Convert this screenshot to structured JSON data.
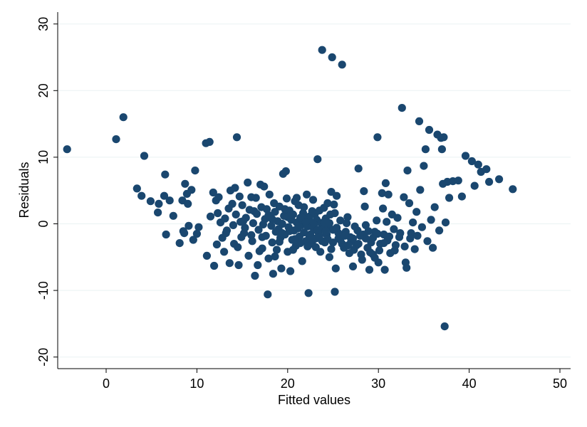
{
  "chart_data": {
    "type": "scatter",
    "title": "",
    "xlabel": "Fitted values",
    "ylabel": "Residuals",
    "xlim": [
      -5,
      50
    ],
    "ylim": [
      -20,
      30
    ],
    "xticks": [
      0,
      10,
      20,
      30,
      40,
      50
    ],
    "yticks": [
      -20,
      -10,
      0,
      10,
      20,
      30
    ],
    "xtick_labels": [
      "0",
      "10",
      "20",
      "30",
      "40",
      "50"
    ],
    "ytick_labels": [
      "-20",
      "-10",
      "0",
      "10",
      "20",
      "30"
    ],
    "grid": "horizontal",
    "legend": "none",
    "colors": {
      "marker": "#1a476f",
      "grid": "#eaf2f3",
      "axis": "#000000",
      "background": "#ffffff"
    },
    "series": [
      {
        "points": [
          [
            -4.3,
            11.2
          ],
          [
            1.1,
            12.7
          ],
          [
            1.9,
            16.0
          ],
          [
            4.2,
            10.2
          ],
          [
            3.4,
            5.3
          ],
          [
            3.9,
            4.2
          ],
          [
            4.9,
            3.4
          ],
          [
            5.7,
            1.7
          ],
          [
            5.8,
            3.0
          ],
          [
            6.4,
            4.2
          ],
          [
            6.5,
            7.4
          ],
          [
            6.6,
            -1.6
          ],
          [
            7.0,
            3.5
          ],
          [
            7.4,
            1.2
          ],
          [
            8.1,
            -2.9
          ],
          [
            8.4,
            3.5
          ],
          [
            8.5,
            -1.1
          ],
          [
            8.6,
            -1.4
          ],
          [
            8.7,
            6.0
          ],
          [
            8.9,
            4.5
          ],
          [
            9.0,
            3.0
          ],
          [
            9.1,
            -0.3
          ],
          [
            9.4,
            5.1
          ],
          [
            9.6,
            -2.4
          ],
          [
            9.8,
            8.0
          ],
          [
            10.0,
            -1.5
          ],
          [
            10.2,
            -0.5
          ],
          [
            11.0,
            12.1
          ],
          [
            11.4,
            12.3
          ],
          [
            11.1,
            -4.8
          ],
          [
            11.5,
            1.1
          ],
          [
            11.8,
            4.7
          ],
          [
            11.9,
            -6.3
          ],
          [
            12.1,
            3.5
          ],
          [
            12.3,
            1.6
          ],
          [
            12.4,
            4.0
          ],
          [
            12.6,
            0.2
          ],
          [
            12.8,
            -2.1
          ],
          [
            13.0,
            -4.2
          ],
          [
            13.1,
            0.8
          ],
          [
            13.3,
            -1.0
          ],
          [
            13.5,
            2.3
          ],
          [
            13.6,
            -5.9
          ],
          [
            13.7,
            5.0
          ],
          [
            13.9,
            3.0
          ],
          [
            14.0,
            -0.2
          ],
          [
            14.2,
            5.4
          ],
          [
            14.3,
            1.4
          ],
          [
            14.4,
            13.0
          ],
          [
            14.5,
            -3.5
          ],
          [
            14.6,
            -6.2
          ],
          [
            14.7,
            4.1
          ],
          [
            14.8,
            0.3
          ],
          [
            15.0,
            2.8
          ],
          [
            15.2,
            -1.4
          ],
          [
            15.4,
            0.9
          ],
          [
            15.6,
            6.2
          ],
          [
            15.7,
            -4.8
          ],
          [
            15.8,
            2.1
          ],
          [
            16.0,
            4.0
          ],
          [
            16.1,
            -2.6
          ],
          [
            16.2,
            0.1
          ],
          [
            16.4,
            -7.8
          ],
          [
            16.5,
            3.9
          ],
          [
            16.6,
            1.5
          ],
          [
            16.7,
            -6.2
          ],
          [
            16.8,
            -0.9
          ],
          [
            17.0,
            5.9
          ],
          [
            17.1,
            2.5
          ],
          [
            17.2,
            -3.7
          ],
          [
            17.4,
            5.6
          ],
          [
            17.5,
            0.7
          ],
          [
            17.6,
            -1.8
          ],
          [
            17.7,
            2.2
          ],
          [
            17.8,
            -10.6
          ],
          [
            17.9,
            -5.2
          ],
          [
            18.0,
            4.4
          ],
          [
            18.1,
            1.0
          ],
          [
            18.2,
            -0.3
          ],
          [
            18.3,
            -2.8
          ],
          [
            18.4,
            -7.5
          ],
          [
            18.5,
            3.1
          ],
          [
            18.6,
            1.8
          ],
          [
            18.7,
            -1.2
          ],
          [
            18.8,
            -3.9
          ],
          [
            18.9,
            0.4
          ],
          [
            19.0,
            -0.8
          ],
          [
            19.1,
            2.6
          ],
          [
            19.2,
            -2.1
          ],
          [
            19.3,
            -6.7
          ],
          [
            19.4,
            0.0
          ],
          [
            19.5,
            7.5
          ],
          [
            19.6,
            1.2
          ],
          [
            19.7,
            -1.6
          ],
          [
            19.8,
            7.9
          ],
          [
            19.9,
            3.8
          ],
          [
            20.0,
            -4.2
          ],
          [
            20.1,
            -0.5
          ],
          [
            20.2,
            2.0
          ],
          [
            20.3,
            -7.1
          ],
          [
            20.4,
            0.6
          ],
          [
            20.5,
            -2.4
          ],
          [
            20.6,
            1.4
          ],
          [
            20.7,
            -1.0
          ],
          [
            20.8,
            3.4
          ],
          [
            20.9,
            -3.3
          ],
          [
            21.0,
            0.2
          ],
          [
            21.1,
            -0.7
          ],
          [
            21.2,
            2.8
          ],
          [
            21.3,
            -1.9
          ],
          [
            21.4,
            0.9
          ],
          [
            21.5,
            -0.2
          ],
          [
            21.6,
            -5.6
          ],
          [
            21.7,
            1.6
          ],
          [
            21.8,
            -1.3
          ],
          [
            21.9,
            0.4
          ],
          [
            22.0,
            -2.6
          ],
          [
            22.1,
            4.4
          ],
          [
            22.2,
            -0.4
          ],
          [
            22.3,
            -10.4
          ],
          [
            22.4,
            1.1
          ],
          [
            22.5,
            -1.6
          ],
          [
            22.6,
            0.2
          ],
          [
            22.7,
            -3.0
          ],
          [
            22.8,
            3.6
          ],
          [
            22.9,
            -0.9
          ],
          [
            23.0,
            1.5
          ],
          [
            23.1,
            -2.2
          ],
          [
            23.2,
            0.6
          ],
          [
            23.3,
            9.7
          ],
          [
            23.4,
            -1.3
          ],
          [
            23.5,
            2.0
          ],
          [
            23.6,
            -4.2
          ],
          [
            23.7,
            0.1
          ],
          [
            23.8,
            26.1
          ],
          [
            23.9,
            -0.6
          ],
          [
            24.0,
            2.4
          ],
          [
            24.1,
            -2.8
          ],
          [
            24.2,
            0.8
          ],
          [
            24.3,
            -1.6
          ],
          [
            24.4,
            3.1
          ],
          [
            24.5,
            -0.3
          ],
          [
            24.6,
            -5.0
          ],
          [
            24.7,
            1.4
          ],
          [
            24.8,
            4.8
          ],
          [
            24.9,
            25.0
          ],
          [
            25.0,
            -0.9
          ],
          [
            25.1,
            2.9
          ],
          [
            25.2,
            -10.2
          ],
          [
            25.3,
            -6.7
          ],
          [
            25.4,
            4.2
          ],
          [
            25.6,
            -2.2
          ],
          [
            25.8,
            0.5
          ],
          [
            26.0,
            23.9
          ],
          [
            26.2,
            -3.6
          ],
          [
            26.4,
            -1.2
          ],
          [
            26.6,
            1.0
          ],
          [
            26.8,
            -4.4
          ],
          [
            27.0,
            -2.6
          ],
          [
            27.2,
            -6.4
          ],
          [
            27.4,
            -0.4
          ],
          [
            27.6,
            -3.2
          ],
          [
            27.8,
            8.3
          ],
          [
            28.0,
            -1.8
          ],
          [
            28.2,
            -5.4
          ],
          [
            28.4,
            4.9
          ],
          [
            28.5,
            2.6
          ],
          [
            28.6,
            -0.2
          ],
          [
            28.8,
            -3.6
          ],
          [
            29.0,
            -6.9
          ],
          [
            29.2,
            -2.8
          ],
          [
            29.4,
            -4.6
          ],
          [
            29.6,
            -1.2
          ],
          [
            29.8,
            0.5
          ],
          [
            29.9,
            13.0
          ],
          [
            30.0,
            -5.8
          ],
          [
            30.2,
            -3.0
          ],
          [
            30.4,
            4.6
          ],
          [
            30.5,
            2.3
          ],
          [
            30.6,
            -1.6
          ],
          [
            30.7,
            -6.9
          ],
          [
            30.8,
            6.1
          ],
          [
            30.9,
            0.3
          ],
          [
            31.0,
            -2.5
          ],
          [
            31.1,
            4.4
          ],
          [
            31.3,
            -4.4
          ],
          [
            31.5,
            1.4
          ],
          [
            31.7,
            -0.8
          ],
          [
            31.9,
            -3.2
          ],
          [
            32.1,
            0.9
          ],
          [
            32.3,
            -2.0
          ],
          [
            32.6,
            17.4
          ],
          [
            32.8,
            4.0
          ],
          [
            33.0,
            -5.8
          ],
          [
            33.1,
            -6.6
          ],
          [
            33.2,
            8.0
          ],
          [
            33.4,
            3.1
          ],
          [
            33.6,
            -1.4
          ],
          [
            33.8,
            0.2
          ],
          [
            34.0,
            -3.8
          ],
          [
            34.2,
            1.8
          ],
          [
            34.5,
            15.4
          ],
          [
            34.6,
            5.1
          ],
          [
            34.8,
            -0.5
          ],
          [
            35.0,
            8.7
          ],
          [
            35.2,
            11.2
          ],
          [
            35.4,
            -2.6
          ],
          [
            35.6,
            14.1
          ],
          [
            35.8,
            0.6
          ],
          [
            36.0,
            -3.6
          ],
          [
            36.2,
            2.5
          ],
          [
            36.5,
            13.4
          ],
          [
            36.7,
            -1.0
          ],
          [
            36.9,
            12.9
          ],
          [
            37.0,
            11.2
          ],
          [
            37.1,
            6.0
          ],
          [
            37.2,
            13.0
          ],
          [
            37.3,
            -15.4
          ],
          [
            37.4,
            0.2
          ],
          [
            37.6,
            6.3
          ],
          [
            37.8,
            3.9
          ],
          [
            38.2,
            6.4
          ],
          [
            38.8,
            6.5
          ],
          [
            39.2,
            4.1
          ],
          [
            39.6,
            10.2
          ],
          [
            40.3,
            9.4
          ],
          [
            40.6,
            5.7
          ],
          [
            41.0,
            8.9
          ],
          [
            41.3,
            7.8
          ],
          [
            41.9,
            8.2
          ],
          [
            42.2,
            6.3
          ],
          [
            43.3,
            6.7
          ],
          [
            44.8,
            5.2
          ],
          [
            14.9,
            -2.0
          ],
          [
            15.3,
            -0.6
          ],
          [
            16.3,
            1.9
          ],
          [
            16.9,
            -4.1
          ],
          [
            17.3,
            -0.1
          ],
          [
            17.9,
            1.3
          ],
          [
            18.6,
            -4.9
          ],
          [
            19.1,
            -2.7
          ],
          [
            19.7,
            2.2
          ],
          [
            20.0,
            1.0
          ],
          [
            20.6,
            -3.9
          ],
          [
            21.0,
            3.9
          ],
          [
            21.4,
            -2.9
          ],
          [
            21.8,
            2.5
          ],
          [
            22.2,
            -3.4
          ],
          [
            22.7,
            1.9
          ],
          [
            23.1,
            -3.5
          ],
          [
            23.5,
            -1.8
          ],
          [
            24.0,
            0.3
          ],
          [
            24.4,
            -2.3
          ],
          [
            24.8,
            -3.8
          ],
          [
            25.2,
            1.6
          ],
          [
            25.6,
            -1.4
          ],
          [
            26.0,
            -3.0
          ],
          [
            26.5,
            0.1
          ],
          [
            26.9,
            -2.0
          ],
          [
            27.3,
            -3.9
          ],
          [
            27.7,
            -1.0
          ],
          [
            28.1,
            -4.6
          ],
          [
            28.6,
            -2.2
          ],
          [
            29.1,
            -4.3
          ],
          [
            29.6,
            -5.1
          ],
          [
            30.1,
            -4.0
          ],
          [
            30.6,
            -2.9
          ],
          [
            31.2,
            -1.9
          ],
          [
            31.8,
            -4.0
          ],
          [
            32.4,
            -1.4
          ],
          [
            32.9,
            -3.4
          ],
          [
            33.5,
            -2.2
          ],
          [
            34.3,
            -1.8
          ],
          [
            12.2,
            -3.1
          ],
          [
            13.2,
            -1.4
          ],
          [
            14.1,
            -3.0
          ],
          [
            15.1,
            0.4
          ],
          [
            16.0,
            -1.7
          ],
          [
            17.2,
            -2.0
          ],
          [
            18.3,
            0.7
          ],
          [
            19.4,
            -1.4
          ],
          [
            20.2,
            -1.1
          ],
          [
            20.8,
            -2.3
          ],
          [
            21.2,
            -0.4
          ],
          [
            21.6,
            0.9
          ],
          [
            22.0,
            0.3
          ],
          [
            22.4,
            -2.0
          ],
          [
            22.9,
            -0.1
          ],
          [
            23.3,
            -0.9
          ],
          [
            23.8,
            -2.6
          ],
          [
            24.2,
            -1.1
          ],
          [
            24.6,
            0.1
          ],
          [
            25.0,
            -2.8
          ],
          [
            25.4,
            -0.6
          ],
          [
            25.8,
            -2.4
          ],
          [
            26.3,
            -1.8
          ],
          [
            26.7,
            -3.2
          ],
          [
            27.2,
            -2.2
          ],
          [
            27.8,
            -3.0
          ],
          [
            28.3,
            -1.6
          ],
          [
            28.9,
            -1.1
          ],
          [
            29.4,
            -2.1
          ],
          [
            29.9,
            -1.5
          ]
        ]
      }
    ]
  }
}
